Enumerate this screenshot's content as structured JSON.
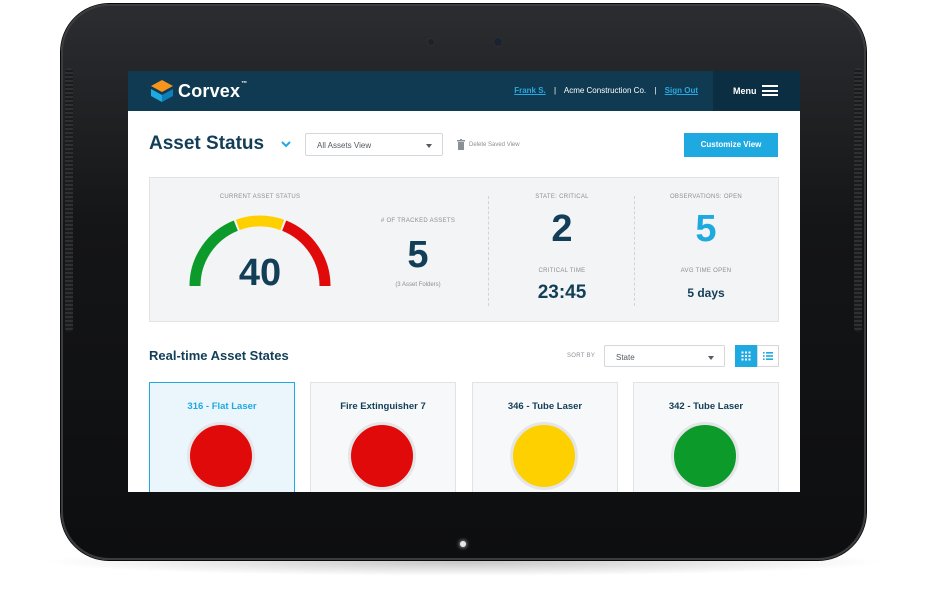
{
  "app": {
    "brand": "Corvex",
    "brand_tm": "™"
  },
  "header": {
    "user_name": "Frank S.",
    "company": "Acme Construction Co.",
    "sign_out": "Sign Out",
    "separator": "|",
    "menu_label": "Menu"
  },
  "toolbar": {
    "title": "Asset Status",
    "view_select": "All Assets View",
    "delete_view": "Delete Saved View",
    "customize": "Customize View"
  },
  "stats": {
    "gauge_label": "CURRENT ASSET STATUS",
    "gauge_value": "40",
    "tracked_label": "# OF TRACKED ASSETS",
    "tracked_value": "5",
    "tracked_sub": "(3 Asset Folders)",
    "critical_label": "STATE:  CRITICAL",
    "critical_value": "2",
    "critical_time_label": "CRITICAL TIME",
    "critical_time_value": "23:45",
    "observations_label": "OBSERVATIONS: OPEN",
    "observations_value": "5",
    "avg_time_label": "AVG TIME OPEN",
    "avg_time_value": "5 days"
  },
  "assets": {
    "title": "Real-time Asset States",
    "sort_label": "SORT BY",
    "sort_value": "State",
    "cards": [
      {
        "name": "316 - Flat Laser",
        "status_color": "#e10a0a",
        "selected": true
      },
      {
        "name": "Fire Extinguisher 7",
        "status_color": "#e10a0a",
        "selected": false
      },
      {
        "name": "346 - Tube Laser",
        "status_color": "#ffd000",
        "selected": false
      },
      {
        "name": "342 - Tube Laser",
        "status_color": "#0c9a2a",
        "selected": false
      }
    ]
  },
  "colors": {
    "navy": "#0f3a52",
    "accent": "#1fa9e1",
    "critical": "#e10a0a",
    "warning": "#ffd000",
    "ok": "#0c9a2a"
  },
  "icons": [
    "corvex-logo-icon",
    "chevron-down-icon",
    "trash-icon",
    "hamburger-icon",
    "grid-view-icon",
    "list-view-icon"
  ]
}
